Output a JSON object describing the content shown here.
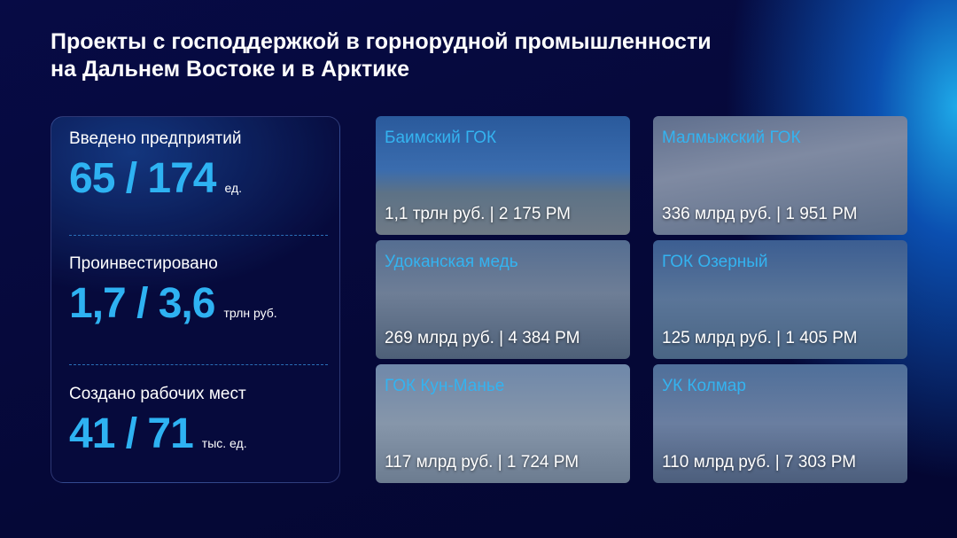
{
  "title_line1": "Проекты с господдержкой в горнорудной промышленности",
  "title_line2": "на Дальнем Востоке и в Арктике",
  "stats": [
    {
      "label": "Введено предприятий",
      "value": "65 / 174",
      "unit": "ед."
    },
    {
      "label": "Проинвестировано",
      "value": "1,7 / 3,6",
      "unit": "трлн руб."
    },
    {
      "label": "Создано рабочих мест",
      "value": "41 / 71",
      "unit": "тыс. ед."
    }
  ],
  "projects": [
    {
      "name": "Баимский ГОК",
      "info": "1,1 трлн руб. | 2 175 РМ"
    },
    {
      "name": "Малмыжский ГОК",
      "info": "336 млрд руб. | 1 951 РМ"
    },
    {
      "name": "Удоканская медь",
      "info": "269 млрд руб. | 4 384 РМ"
    },
    {
      "name": "ГОК Озерный",
      "info": "125 млрд руб. | 1 405 РМ"
    },
    {
      "name": "ГОК Кун-Манье",
      "info": "117 млрд руб. | 1 724 РМ"
    },
    {
      "name": "УК Колмар",
      "info": "110 млрд руб. | 7 303 РМ"
    }
  ],
  "colors": {
    "accent": "#2eb2f2",
    "background": "#050837"
  }
}
